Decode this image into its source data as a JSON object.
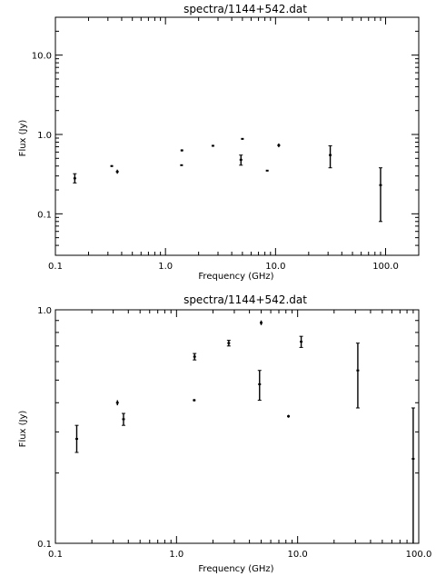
{
  "chart_data": [
    {
      "type": "scatter",
      "title": "spectra/1144+542.dat",
      "xlabel": "Frequency (GHz)",
      "ylabel": "Flux (Jy)",
      "xscale": "log",
      "yscale": "log",
      "xlim": [
        0.1,
        200
      ],
      "ylim": [
        0.03,
        30
      ],
      "xtick_labels": [
        "0.1",
        "1.0",
        "10.0",
        "100.0"
      ],
      "xtick_values": [
        0.1,
        1,
        10,
        100
      ],
      "ytick_labels": [
        "0.1",
        "1.0",
        "10.0"
      ],
      "ytick_values": [
        0.1,
        1,
        10
      ],
      "grid": false,
      "series": [
        {
          "points": [
            {
              "x": 0.15,
              "y": 0.28,
              "ylow": 0.245,
              "yhigh": 0.32
            },
            {
              "x": 0.325,
              "y": 0.4,
              "ylow": 0.39,
              "yhigh": 0.41
            },
            {
              "x": 0.365,
              "y": 0.34,
              "ylow": 0.32,
              "yhigh": 0.36
            },
            {
              "x": 1.4,
              "y": 0.41,
              "ylow": 0.405,
              "yhigh": 0.415
            },
            {
              "x": 1.41,
              "y": 0.63,
              "ylow": 0.61,
              "yhigh": 0.65
            },
            {
              "x": 2.7,
              "y": 0.72,
              "ylow": 0.7,
              "yhigh": 0.74
            },
            {
              "x": 4.85,
              "y": 0.48,
              "ylow": 0.41,
              "yhigh": 0.55
            },
            {
              "x": 5.0,
              "y": 0.88,
              "ylow": 0.86,
              "yhigh": 0.9
            },
            {
              "x": 8.4,
              "y": 0.35,
              "ylow": 0.345,
              "yhigh": 0.355
            },
            {
              "x": 10.7,
              "y": 0.73,
              "ylow": 0.69,
              "yhigh": 0.77
            },
            {
              "x": 31.4,
              "y": 0.55,
              "ylow": 0.38,
              "yhigh": 0.72
            },
            {
              "x": 90,
              "y": 0.23,
              "ylow": 0.08,
              "yhigh": 0.38
            }
          ]
        }
      ]
    },
    {
      "type": "scatter",
      "title": "spectra/1144+542.dat",
      "xlabel": "Frequency (GHz)",
      "ylabel": "Flux (Jy)",
      "xscale": "log",
      "yscale": "log",
      "xlim": [
        0.1,
        100
      ],
      "ylim": [
        0.1,
        1.0
      ],
      "xtick_labels": [
        "0.1",
        "1.0",
        "10.0",
        "100.0"
      ],
      "xtick_values": [
        0.1,
        1,
        10,
        100
      ],
      "ytick_labels": [
        "0.1",
        "1.0"
      ],
      "ytick_values": [
        0.1,
        1
      ],
      "grid": false,
      "series": [
        {
          "points": [
            {
              "x": 0.15,
              "y": 0.28,
              "ylow": 0.245,
              "yhigh": 0.32
            },
            {
              "x": 0.325,
              "y": 0.4,
              "ylow": 0.39,
              "yhigh": 0.41
            },
            {
              "x": 0.365,
              "y": 0.34,
              "ylow": 0.32,
              "yhigh": 0.36
            },
            {
              "x": 1.4,
              "y": 0.41,
              "ylow": 0.405,
              "yhigh": 0.415
            },
            {
              "x": 1.41,
              "y": 0.63,
              "ylow": 0.61,
              "yhigh": 0.65
            },
            {
              "x": 2.7,
              "y": 0.72,
              "ylow": 0.7,
              "yhigh": 0.74
            },
            {
              "x": 4.85,
              "y": 0.48,
              "ylow": 0.41,
              "yhigh": 0.55
            },
            {
              "x": 5.0,
              "y": 0.88,
              "ylow": 0.86,
              "yhigh": 0.9
            },
            {
              "x": 8.4,
              "y": 0.35,
              "ylow": 0.345,
              "yhigh": 0.355
            },
            {
              "x": 10.7,
              "y": 0.73,
              "ylow": 0.69,
              "yhigh": 0.77
            },
            {
              "x": 31.4,
              "y": 0.55,
              "ylow": 0.38,
              "yhigh": 0.72
            },
            {
              "x": 90,
              "y": 0.23,
              "ylow": 0.08,
              "yhigh": 0.38
            }
          ]
        }
      ]
    }
  ]
}
